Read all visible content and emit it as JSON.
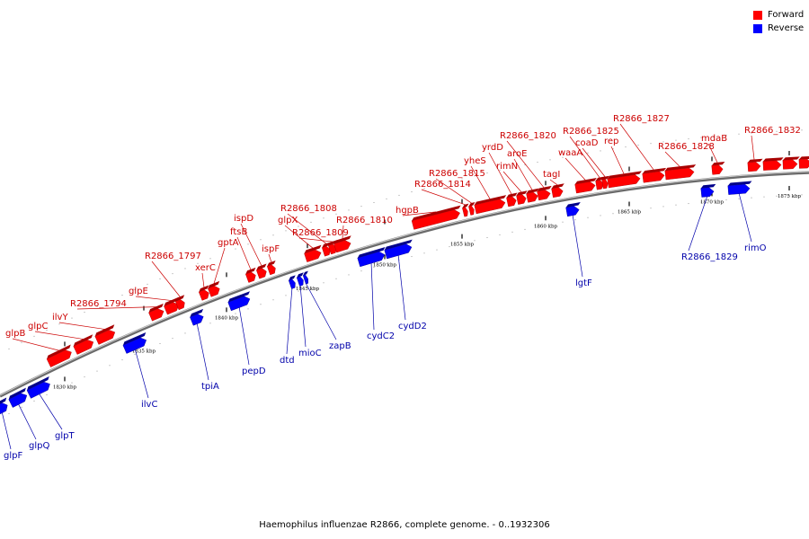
{
  "legend": {
    "forward_label": "Forward",
    "reverse_label": "Reverse",
    "forward_color": "#ff0000",
    "reverse_color": "#0000ff"
  },
  "caption": "Haemophilus influenzae R2866, complete genome. - 0..1932306",
  "ticks": [
    {
      "label": "1830 kbp"
    },
    {
      "label": "1835 kbp"
    },
    {
      "label": "1840 kbp"
    },
    {
      "label": "1845 kbp"
    },
    {
      "label": "1850 kbp"
    },
    {
      "label": "1855 kbp"
    },
    {
      "label": "1860 kbp"
    },
    {
      "label": "1865 kbp"
    },
    {
      "label": "1870 kbp"
    },
    {
      "label": "1875 kbp"
    }
  ],
  "forward_genes": [
    {
      "label": "glpB"
    },
    {
      "label": "glpC"
    },
    {
      "label": "ilvY"
    },
    {
      "label": "R2866_1794"
    },
    {
      "label": "glpE"
    },
    {
      "label": "R2866_1797"
    },
    {
      "label": "xerC"
    },
    {
      "label": "gptA"
    },
    {
      "label": "ftsB"
    },
    {
      "label": "ispD"
    },
    {
      "label": "ispF"
    },
    {
      "label": "glpX"
    },
    {
      "label": "R2866_1808"
    },
    {
      "label": "R2866_1809"
    },
    {
      "label": "R2866_1810"
    },
    {
      "label": "hgpB"
    },
    {
      "label": "R2866_1814"
    },
    {
      "label": "R2866_1815"
    },
    {
      "label": "yheS"
    },
    {
      "label": "yrdD"
    },
    {
      "label": "rimN"
    },
    {
      "label": "aroE"
    },
    {
      "label": "R2866_1820"
    },
    {
      "label": "tagI"
    },
    {
      "label": "waaA"
    },
    {
      "label": "R2866_1825"
    },
    {
      "label": "coaD"
    },
    {
      "label": "rep"
    },
    {
      "label": "R2866_1827"
    },
    {
      "label": "R2866_1828"
    },
    {
      "label": "mdaB"
    },
    {
      "label": "R2866_1832"
    }
  ],
  "reverse_genes": [
    {
      "label": "glpF"
    },
    {
      "label": "glpQ"
    },
    {
      "label": "glpT"
    },
    {
      "label": "ilvC"
    },
    {
      "label": "tpiA"
    },
    {
      "label": "pepD"
    },
    {
      "label": "dtd"
    },
    {
      "label": "mioC"
    },
    {
      "label": "zapB"
    },
    {
      "label": "cydC2"
    },
    {
      "label": "cydD2"
    },
    {
      "label": "lgtF"
    },
    {
      "label": "R2866_1829"
    },
    {
      "label": "rimO"
    }
  ]
}
